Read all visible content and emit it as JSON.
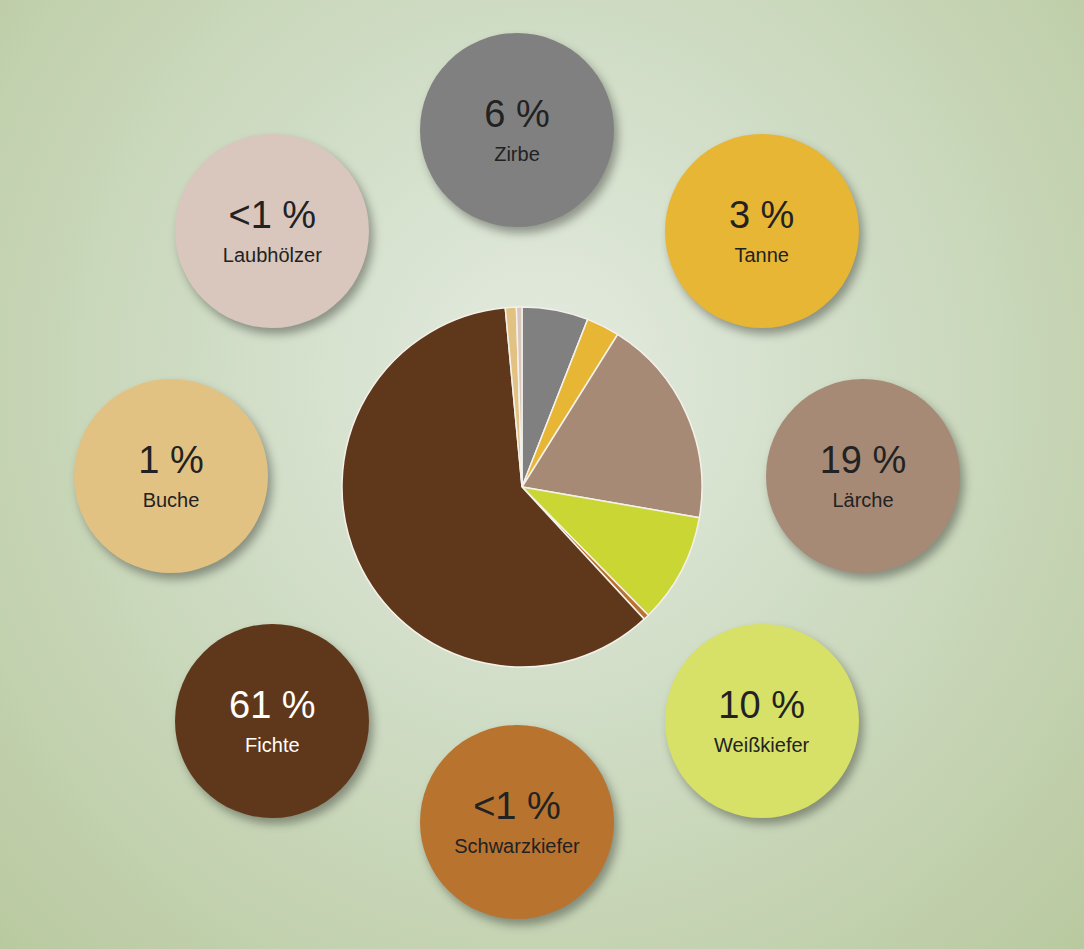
{
  "chart_data": {
    "type": "pie",
    "categories": [
      "Zirbe",
      "Tanne",
      "Lärche",
      "Weißkiefer",
      "Schwarzkiefer",
      "Fichte",
      "Buche",
      "Laubhölzer"
    ],
    "values": [
      6,
      3,
      19,
      10,
      0.5,
      61,
      1,
      0.5
    ],
    "value_labels": [
      "6 %",
      "3 %",
      "19 %",
      "10 %",
      "<1 %",
      "61 %",
      "1 %",
      "<1 %"
    ],
    "colors": [
      "#808080",
      "#e6b634",
      "#a68a76",
      "#c9d634",
      "#b8732f",
      "#5f381c",
      "#e2c283",
      "#d9c6bd"
    ],
    "data_labels": true
  }
}
